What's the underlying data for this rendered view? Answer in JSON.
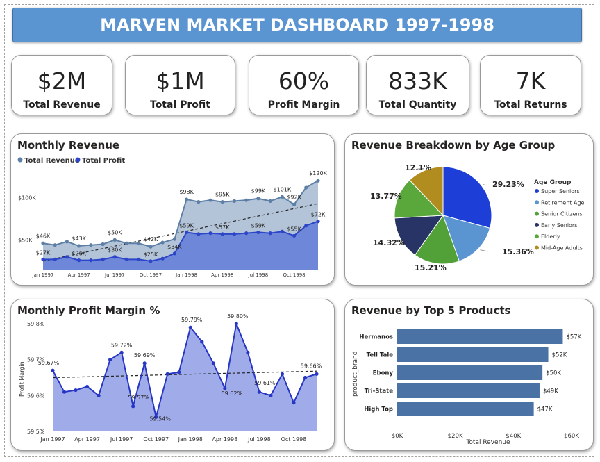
{
  "title": "MARVEN MARKET DASHBOARD 1997-1998",
  "kpis": [
    {
      "value": "$2M",
      "label": "Total Revenue"
    },
    {
      "value": "$1M",
      "label": "Total Profit"
    },
    {
      "value": "60%",
      "label": "Profit Margin"
    },
    {
      "value": "833K",
      "label": "Total Quantity"
    },
    {
      "value": "7K",
      "label": "Total Returns"
    }
  ],
  "chart_data": [
    {
      "id": "monthly-revenue",
      "type": "area",
      "title": "Monthly Revenue",
      "x": [
        "Jan 1997",
        "Feb 1997",
        "Mar 1997",
        "Apr 1997",
        "May 1997",
        "Jun 1997",
        "Jul 1997",
        "Aug 1997",
        "Sep 1997",
        "Oct 1997",
        "Nov 1997",
        "Dec 1997",
        "Jan 1998",
        "Feb 1998",
        "Mar 1998",
        "Apr 1998",
        "May 1998",
        "Jun 1998",
        "Jul 1998",
        "Aug 1998",
        "Sep 1998",
        "Oct 1998",
        "Nov 1998",
        "Dec 1998"
      ],
      "x_tick_labels": [
        "Jan 1997",
        "Apr 1997",
        "Jul 1997",
        "Oct 1997",
        "Jan 1998",
        "Apr 1998",
        "Jul 1998",
        "Oct 1998"
      ],
      "x_tick_index": [
        0,
        3,
        6,
        9,
        12,
        15,
        18,
        21
      ],
      "series": [
        {
          "name": "Total Revenue",
          "color": "#5d7fa5",
          "values": [
            46,
            44,
            48,
            43,
            44,
            45,
            50,
            46,
            46,
            42,
            47,
            51,
            98,
            95,
            97,
            95,
            96,
            97,
            99,
            96,
            101,
            92,
            112,
            120
          ]
        },
        {
          "name": "Total Profit",
          "color": "#2d45c9",
          "values": [
            27,
            27,
            30,
            26,
            26,
            27,
            30,
            27,
            27,
            25,
            28,
            34,
            59,
            57,
            58,
            57,
            57,
            58,
            59,
            58,
            60,
            55,
            67,
            72
          ]
        }
      ],
      "data_labels": [
        {
          "series": 0,
          "index": 0,
          "text": "$46K"
        },
        {
          "series": 0,
          "index": 3,
          "text": "$43K"
        },
        {
          "series": 0,
          "index": 6,
          "text": "$50K"
        },
        {
          "series": 0,
          "index": 9,
          "text": "$42K"
        },
        {
          "series": 0,
          "index": 12,
          "text": "$98K"
        },
        {
          "series": 0,
          "index": 15,
          "text": "$95K"
        },
        {
          "series": 0,
          "index": 18,
          "text": "$99K"
        },
        {
          "series": 0,
          "index": 20,
          "text": "$101K"
        },
        {
          "series": 0,
          "index": 21,
          "text": "$92K"
        },
        {
          "series": 0,
          "index": 23,
          "text": "$120K"
        },
        {
          "series": 1,
          "index": 0,
          "text": "$27K"
        },
        {
          "series": 1,
          "index": 3,
          "text": "$26K"
        },
        {
          "series": 1,
          "index": 6,
          "text": "$30K"
        },
        {
          "series": 1,
          "index": 9,
          "text": "$25K"
        },
        {
          "series": 1,
          "index": 11,
          "text": "$34K"
        },
        {
          "series": 1,
          "index": 12,
          "text": "$59K"
        },
        {
          "series": 1,
          "index": 15,
          "text": "$57K"
        },
        {
          "series": 1,
          "index": 18,
          "text": "$59K"
        },
        {
          "series": 1,
          "index": 21,
          "text": "$55K"
        },
        {
          "series": 1,
          "index": 23,
          "text": "$72K"
        }
      ],
      "y_ticks": [
        {
          "value": 50,
          "text": "$50K"
        },
        {
          "value": 100,
          "text": "$100K"
        }
      ],
      "ylim": [
        15,
        130
      ],
      "trend": {
        "start": 25,
        "end": 93
      },
      "legend": "top-left"
    },
    {
      "id": "age-group-pie",
      "type": "pie",
      "title": "Revenue Breakdown by Age Group",
      "legend_title": "Age Group",
      "slices": [
        {
          "label": "Super Seniors",
          "value": 29.23,
          "text": "29.23%",
          "color": "#1d3fd8"
        },
        {
          "label": "Retirement Age",
          "value": 15.36,
          "text": "15.36%",
          "color": "#5b95d1"
        },
        {
          "label": "Senior Citizens",
          "value": 15.21,
          "text": "15.21%",
          "color": "#52a038"
        },
        {
          "label": "Early Seniors",
          "value": 14.32,
          "text": "14.32%",
          "color": "#283366"
        },
        {
          "label": "Elderly",
          "value": 13.77,
          "text": "13.77%",
          "color": "#5aa73c"
        },
        {
          "label": "Mid-Age Adults",
          "value": 12.1,
          "text": "12.1%",
          "color": "#b08d1e"
        }
      ],
      "legend": "right"
    },
    {
      "id": "profit-margin",
      "type": "area",
      "title": "Monthly Profit Margin %",
      "ylabel": "Profit Margin",
      "x": [
        "Jan 1997",
        "Feb 1997",
        "Mar 1997",
        "Apr 1997",
        "May 1997",
        "Jun 1997",
        "Jul 1997",
        "Aug 1997",
        "Sep 1997",
        "Oct 1997",
        "Nov 1997",
        "Dec 1997",
        "Jan 1998",
        "Feb 1998",
        "Mar 1998",
        "Apr 1998",
        "May 1998",
        "Jun 1998",
        "Jul 1998",
        "Aug 1998",
        "Sep 1998",
        "Oct 1998",
        "Nov 1998",
        "Dec 1998"
      ],
      "x_tick_labels": [
        "Jan 1997",
        "Apr 1997",
        "Jul 1997",
        "Oct 1997",
        "Jan 1998",
        "Apr 1998",
        "Jul 1998",
        "Oct 1998"
      ],
      "x_tick_index": [
        0,
        3,
        6,
        9,
        12,
        15,
        18,
        21
      ],
      "series": [
        {
          "name": "Profit Margin",
          "color": "#2737c4",
          "values": [
            59.67,
            59.61,
            59.615,
            59.625,
            59.6,
            59.7,
            59.72,
            59.57,
            59.69,
            59.54,
            59.66,
            59.665,
            59.79,
            59.75,
            59.69,
            59.62,
            59.8,
            59.72,
            59.61,
            59.6,
            59.66,
            59.58,
            59.65,
            59.66
          ]
        }
      ],
      "data_labels": [
        {
          "index": 0,
          "text": "59.67%"
        },
        {
          "index": 6,
          "text": "59.72%"
        },
        {
          "index": 7,
          "text": "59.57%"
        },
        {
          "index": 8,
          "text": "59.69%"
        },
        {
          "index": 9,
          "text": "59.54%"
        },
        {
          "index": 12,
          "text": "59.79%"
        },
        {
          "index": 15,
          "text": "59.62%"
        },
        {
          "index": 16,
          "text": "59.80%"
        },
        {
          "index": 18,
          "text": "59.61%"
        },
        {
          "index": 23,
          "text": "59.66%"
        }
      ],
      "y_ticks": [
        {
          "value": 59.5,
          "text": "59.5%"
        },
        {
          "value": 59.6,
          "text": "59.6%"
        },
        {
          "value": 59.7,
          "text": "59.7%"
        },
        {
          "value": 59.8,
          "text": "59.8%"
        }
      ],
      "ylim": [
        59.5,
        59.8
      ],
      "trend": {
        "start": 59.65,
        "end": 59.668
      }
    },
    {
      "id": "top-products",
      "type": "bar",
      "orientation": "horizontal",
      "title": "Revenue by Top 5 Products",
      "xlabel": "Total Revenue",
      "ylabel": "product_brand",
      "categories": [
        "Hermanos",
        "Tell Tale",
        "Ebony",
        "Tri-State",
        "High Top"
      ],
      "values": [
        57,
        52,
        50,
        49,
        47
      ],
      "value_labels": [
        "$57K",
        "$52K",
        "$50K",
        "$49K",
        "$47K"
      ],
      "x_ticks": [
        {
          "value": 0,
          "text": "$0K"
        },
        {
          "value": 20,
          "text": "$20K"
        },
        {
          "value": 40,
          "text": "$40K"
        },
        {
          "value": 60,
          "text": "$60K"
        }
      ],
      "xlim": [
        0,
        60
      ],
      "color": "#4a72a4"
    }
  ]
}
